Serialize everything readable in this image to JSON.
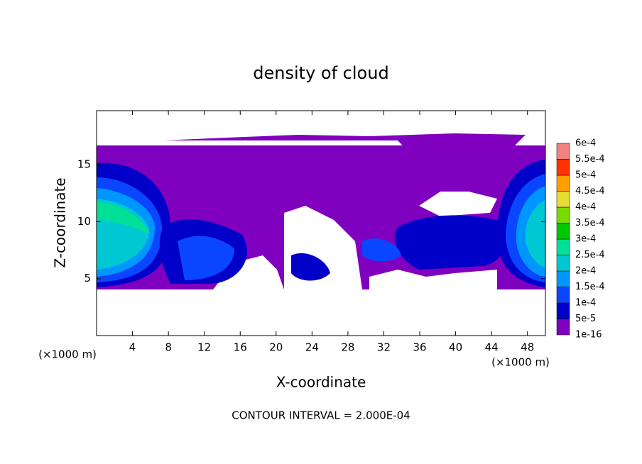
{
  "chart_data": {
    "type": "contour",
    "title": "density of cloud",
    "xlabel": "X-coordinate",
    "ylabel": "Z-coordinate",
    "xunit": "(×1000 m)",
    "annotation": "CONTOUR INTERVAL = 2.000E-04",
    "xlim": [
      0,
      50
    ],
    "ylim": [
      0,
      19.75
    ],
    "xticks": [
      4,
      8,
      12,
      16,
      20,
      24,
      28,
      32,
      36,
      40,
      44,
      48
    ],
    "yticks": [
      5,
      10,
      15
    ],
    "colorbar": {
      "levels": [
        {
          "value": 1e-16,
          "label": "1e-16"
        },
        {
          "value": 5e-05,
          "label": "5e-5"
        },
        {
          "value": 0.0001,
          "label": "1e-4"
        },
        {
          "value": 0.00015,
          "label": "1.5e-4"
        },
        {
          "value": 0.0002,
          "label": "2e-4"
        },
        {
          "value": 0.00025,
          "label": "2.5e-4"
        },
        {
          "value": 0.0003,
          "label": "3e-4"
        },
        {
          "value": 0.00035,
          "label": "3.5e-4"
        },
        {
          "value": 0.0004,
          "label": "4e-4"
        },
        {
          "value": 0.00045,
          "label": "4.5e-4"
        },
        {
          "value": 0.0005,
          "label": "5e-4"
        },
        {
          "value": 0.00055,
          "label": "5.5e-4"
        },
        {
          "value": 0.0006,
          "label": "6e-4"
        }
      ],
      "colors": [
        "#8000c0",
        "#0000c8",
        "#0a46ff",
        "#0096ff",
        "#00c8d2",
        "#00e096",
        "#00c800",
        "#78dc00",
        "#e6dc32",
        "#ffa000",
        "#ff3200",
        "#f08282"
      ]
    }
  }
}
